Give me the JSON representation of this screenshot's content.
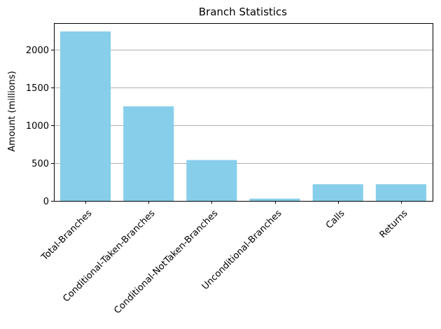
{
  "chart_data": {
    "type": "bar",
    "title": "Branch Statistics",
    "xlabel": "",
    "ylabel": "Amount (millions)",
    "categories": [
      "Total-Branches",
      "Conditional-Taken-Branches",
      "Conditional-NotTaken-Branches",
      "Unconditional-Branches",
      "Calls",
      "Returns"
    ],
    "values": [
      2240,
      1250,
      540,
      30,
      220,
      220
    ],
    "ylim": [
      0,
      2350
    ],
    "yticks": [
      0,
      500,
      1000,
      1500,
      2000
    ],
    "grid": "y-axis",
    "legend": "none",
    "colors": {
      "bar": "#87CEEB",
      "grid": "#b0b0b0",
      "axis": "#000000"
    }
  }
}
